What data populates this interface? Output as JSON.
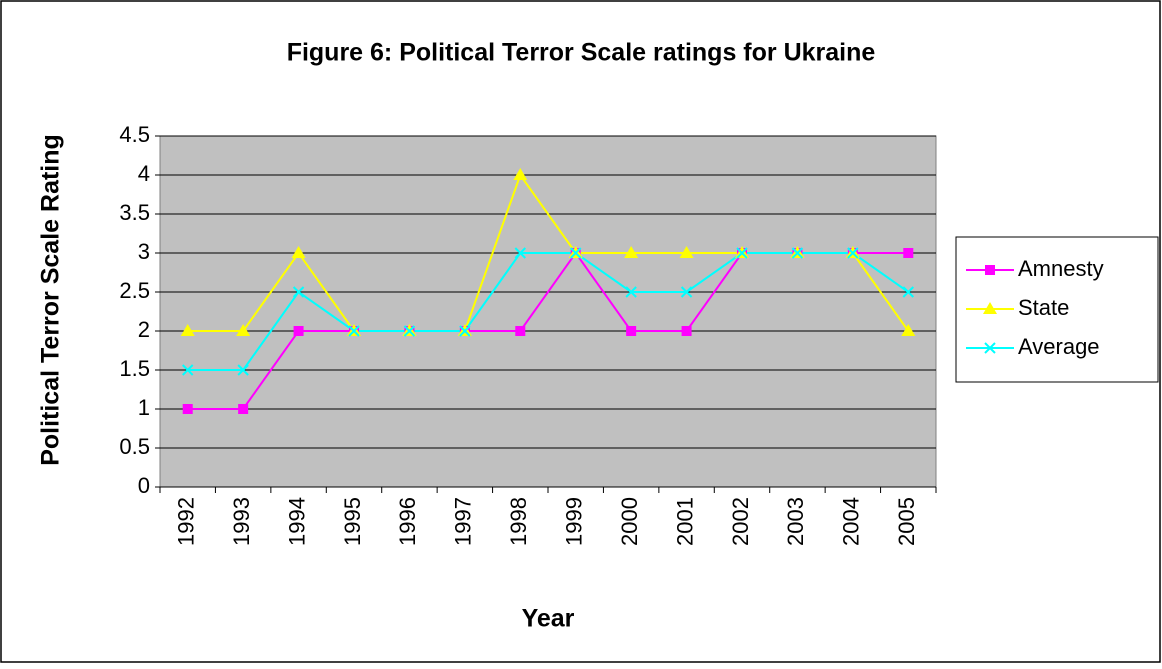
{
  "chart_data": {
    "type": "line",
    "title": "Figure 6: Political Terror Scale ratings for Ukraine",
    "x_label": "Year",
    "y_label": "Political Terror Scale Rating",
    "categories": [
      "1992",
      "1993",
      "1994",
      "1995",
      "1996",
      "1997",
      "1998",
      "1999",
      "2000",
      "2001",
      "2002",
      "2003",
      "2004",
      "2005"
    ],
    "series": [
      {
        "name": "Amnesty",
        "color": "#ff00ff",
        "marker": "square",
        "values": [
          1,
          1,
          2,
          2,
          2,
          2,
          2,
          3,
          2,
          2,
          3,
          3,
          3,
          3
        ]
      },
      {
        "name": "State",
        "color": "#ffff00",
        "marker": "triangle",
        "values": [
          2,
          2,
          3,
          2,
          2,
          2,
          4,
          3,
          3,
          3,
          3,
          3,
          3,
          2
        ]
      },
      {
        "name": "Average",
        "color": "#00ffff",
        "marker": "x",
        "values": [
          1.5,
          1.5,
          2.5,
          2,
          2,
          2,
          3,
          3,
          2.5,
          2.5,
          3,
          3,
          3,
          2.5
        ]
      }
    ],
    "ylim": [
      0,
      4.5
    ],
    "yticks": [
      0,
      0.5,
      1,
      1.5,
      2,
      2.5,
      3,
      3.5,
      4,
      4.5
    ],
    "grid": true,
    "legend": "right"
  }
}
